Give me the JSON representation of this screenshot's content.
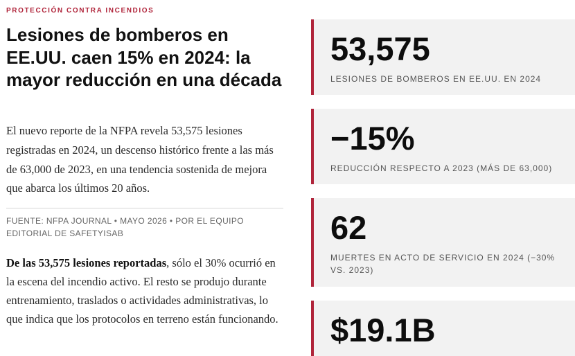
{
  "header": {
    "kicker": "PROTECCIÓN CONTRA INCENDIOS",
    "title": "Lesiones de bomberos en EE.UU. caen 15% en 2024: la mayor reducción en una década"
  },
  "lead": "El nuevo reporte de la NFPA revela 53,575 lesiones registradas en 2024, un descenso histórico frente a las más de 63,000 de 2023, en una tendencia sostenida de mejora que abarca los últimos 20 años.",
  "source": "FUENTE: NFPA JOURNAL • MAYO 2026 • POR EL EQUIPO EDITORIAL DE SAFETYISAB",
  "body": {
    "bold": "De las 53,575 lesiones reportadas",
    "text": ", sólo el 30% ocurrió en la escena del incendio activo. El resto se produjo durante entrenamiento, traslados o actividades administrativas, lo que indica que los protocolos en terreno están funcionando."
  },
  "stats": [
    {
      "value": "53,575",
      "label": "LESIONES DE BOMBEROS EN EE.UU. EN 2024"
    },
    {
      "value": "−15%",
      "label": "REDUCCIÓN RESPECTO A 2023 (MÁS DE 63,000)"
    },
    {
      "value": "62",
      "label": "MUERTES EN ACTO DE SERVICIO EN 2024 (−30% VS. 2023)"
    },
    {
      "value": "$19.1B"
    }
  ]
}
